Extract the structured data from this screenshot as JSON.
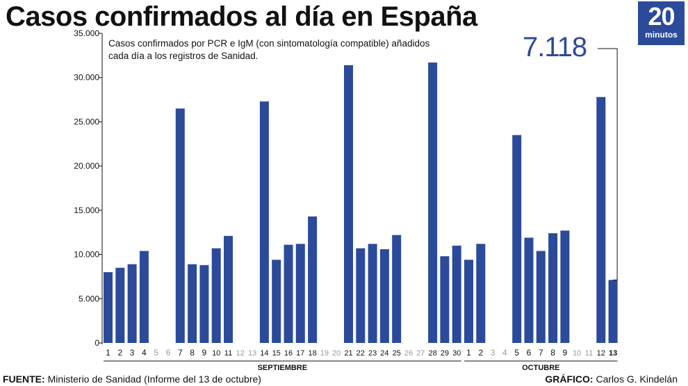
{
  "title": "Casos confirmados al día en España",
  "logo": {
    "number": "20",
    "text": "minutos"
  },
  "subtitle": "Casos confirmados por PCR e IgM (con sintomatología compatible) añadidos cada día a los registros de Sanidad.",
  "highlight_value": "7.118",
  "footer": {
    "source_label": "FUENTE:",
    "source_text": "Ministerio de Sanidad (Informe del 13 de octubre)",
    "credit_label": "GRÁFICO:",
    "credit_text": "Carlos G. Kindelán"
  },
  "colors": {
    "bar": "#2b4a9a",
    "axis": "#111111",
    "muted": "#999999"
  },
  "chart_data": {
    "type": "bar",
    "title": "Casos confirmados al día en España",
    "ylim": [
      0,
      35000
    ],
    "yticks": [
      0,
      5000,
      10000,
      15000,
      20000,
      25000,
      30000,
      35000
    ],
    "ytick_labels": [
      "0",
      "5.000",
      "10.000",
      "15.000",
      "20.000",
      "25.000",
      "30.000",
      "35.000"
    ],
    "grid": false,
    "month_labels": [
      {
        "label": "SEPTIEMBRE",
        "start": 0,
        "end": 29
      },
      {
        "label": "OCTUBRE",
        "start": 30,
        "end": 42
      }
    ],
    "categories": [
      "1",
      "2",
      "3",
      "4",
      "5",
      "6",
      "7",
      "8",
      "9",
      "10",
      "11",
      "12",
      "13",
      "14",
      "15",
      "16",
      "17",
      "18",
      "19",
      "20",
      "21",
      "22",
      "23",
      "24",
      "25",
      "26",
      "27",
      "28",
      "29",
      "30",
      "1",
      "2",
      "3",
      "4",
      "5",
      "6",
      "7",
      "8",
      "9",
      "10",
      "11",
      "12",
      "13"
    ],
    "bold_category_index": 42,
    "values": [
      8000,
      8500,
      8900,
      10400,
      null,
      null,
      26500,
      8900,
      8800,
      10700,
      12100,
      null,
      null,
      27300,
      9400,
      11100,
      11200,
      14300,
      null,
      null,
      31400,
      10700,
      11200,
      10600,
      12200,
      null,
      null,
      31700,
      9800,
      11000,
      9400,
      11200,
      null,
      null,
      23500,
      11900,
      10400,
      12400,
      12700,
      null,
      null,
      27800,
      7118
    ]
  }
}
